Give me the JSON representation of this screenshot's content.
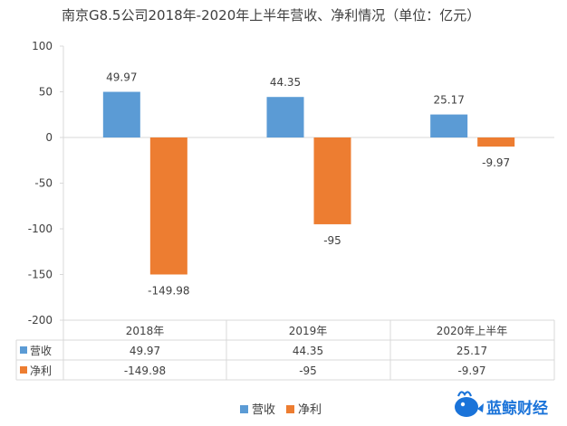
{
  "chart_data": {
    "type": "bar",
    "title": "南京G8.5公司2018年-2020年上半年营收、净利情况（单位：亿元）",
    "categories": [
      "2018年",
      "2019年",
      "2020年上半年"
    ],
    "series": [
      {
        "name": "营收",
        "values": [
          49.97,
          44.35,
          25.17
        ],
        "labels": [
          "49.97",
          "44.35",
          "25.17"
        ],
        "color": "#5b9bd5"
      },
      {
        "name": "净利",
        "values": [
          -149.98,
          -95,
          -9.97
        ],
        "labels": [
          "-149.98",
          "-95",
          "-9.97"
        ],
        "color": "#ed7d31"
      }
    ],
    "ylim": [
      -200,
      100
    ],
    "yticks": [
      "100",
      "50",
      "0",
      "-50",
      "-100",
      "-150",
      "-200"
    ],
    "yticks_values": [
      100,
      50,
      0,
      -50,
      -100,
      -150,
      -200
    ],
    "grid": false,
    "data_table": true,
    "legend": "bottom"
  },
  "brand": {
    "name": "蓝鲸财经",
    "icon": "whale-logo-icon",
    "color": "#1a73d9"
  }
}
